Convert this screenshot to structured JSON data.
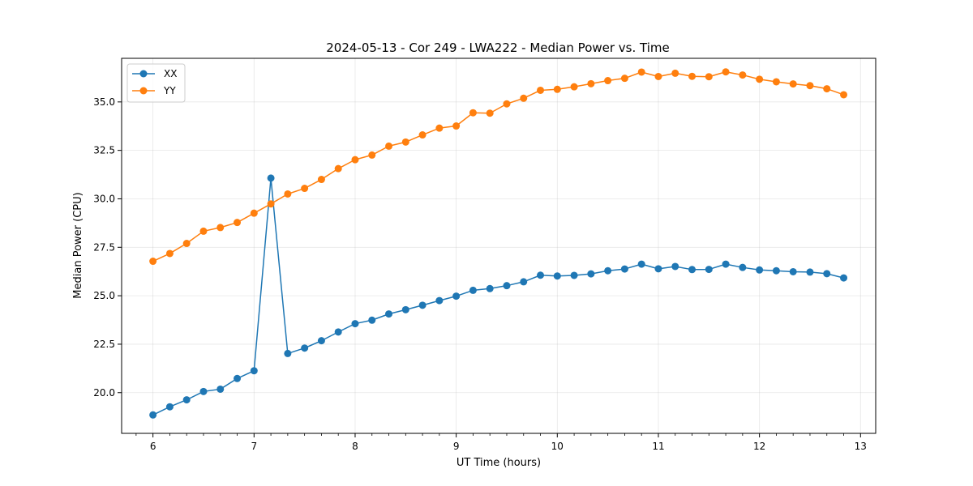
{
  "chart_data": {
    "type": "line",
    "title": "2024-05-13 - Cor 249 - LWA222 - Median Power vs. Time",
    "xlabel": "UT Time (hours)",
    "ylabel": "Median Power (CPU)",
    "xlim": [
      5.69,
      13.15
    ],
    "ylim": [
      17.9,
      37.25
    ],
    "x_ticks": [
      6,
      7,
      8,
      9,
      10,
      11,
      12,
      13
    ],
    "x_tick_labels": [
      "6",
      "7",
      "8",
      "9",
      "10",
      "11",
      "12",
      "13"
    ],
    "x_minor_ticks": [
      5.8333,
      6.1667,
      6.3333,
      6.5,
      6.6667,
      6.8333,
      7.1667,
      7.3333,
      7.5,
      7.6667,
      7.8333,
      8.1667,
      8.3333,
      8.5,
      8.6667,
      8.8333,
      9.1667,
      9.3333,
      9.5,
      9.6667,
      9.8333,
      10.1667,
      10.3333,
      10.5,
      10.6667,
      10.8333,
      11.1667,
      11.3333,
      11.5,
      11.6667,
      11.8333,
      12.1667,
      12.3333,
      12.5,
      12.6667,
      12.8333,
      13.1667
    ],
    "y_ticks": [
      20.0,
      22.5,
      25.0,
      27.5,
      30.0,
      32.5,
      35.0
    ],
    "y_tick_labels": [
      "20.0",
      "22.5",
      "25.0",
      "27.5",
      "30.0",
      "32.5",
      "35.0"
    ],
    "grid": true,
    "legend": {
      "placement": "top-left",
      "entries": [
        "XX",
        "YY"
      ]
    },
    "x": [
      6.0,
      6.1667,
      6.3333,
      6.5,
      6.6667,
      6.8333,
      7.0,
      7.1667,
      7.3333,
      7.5,
      7.6667,
      7.8333,
      8.0,
      8.1667,
      8.3333,
      8.5,
      8.6667,
      8.8333,
      9.0,
      9.1667,
      9.3333,
      9.5,
      9.6667,
      9.8333,
      10.0,
      10.1667,
      10.3333,
      10.5,
      10.6667,
      10.8333,
      11.0,
      11.1667,
      11.3333,
      11.5,
      11.6667,
      11.8333,
      12.0,
      12.1667,
      12.3333,
      12.5,
      12.6667,
      12.8333
    ],
    "series": [
      {
        "name": "XX",
        "color": "#1f77b4",
        "values": [
          18.85,
          19.27,
          19.63,
          20.06,
          20.18,
          20.73,
          21.13,
          31.07,
          22.02,
          22.3,
          22.68,
          23.13,
          23.56,
          23.74,
          24.06,
          24.28,
          24.51,
          24.75,
          24.98,
          25.28,
          25.37,
          25.52,
          25.72,
          26.06,
          26.02,
          26.05,
          26.13,
          26.29,
          26.38,
          26.63,
          26.39,
          26.51,
          26.35,
          26.36,
          26.63,
          26.46,
          26.33,
          26.29,
          26.24,
          26.22,
          26.14,
          25.92
        ]
      },
      {
        "name": "YY",
        "color": "#ff7f0e",
        "values": [
          26.78,
          27.18,
          27.7,
          28.33,
          28.52,
          28.78,
          29.26,
          29.74,
          30.25,
          30.54,
          31.0,
          31.56,
          32.02,
          32.26,
          32.72,
          32.93,
          33.3,
          33.65,
          33.76,
          34.44,
          34.42,
          34.9,
          35.19,
          35.6,
          35.65,
          35.78,
          35.94,
          36.1,
          36.22,
          36.54,
          36.31,
          36.48,
          36.32,
          36.3,
          36.55,
          36.39,
          36.17,
          36.04,
          35.93,
          35.84,
          35.68,
          35.37
        ]
      }
    ]
  }
}
